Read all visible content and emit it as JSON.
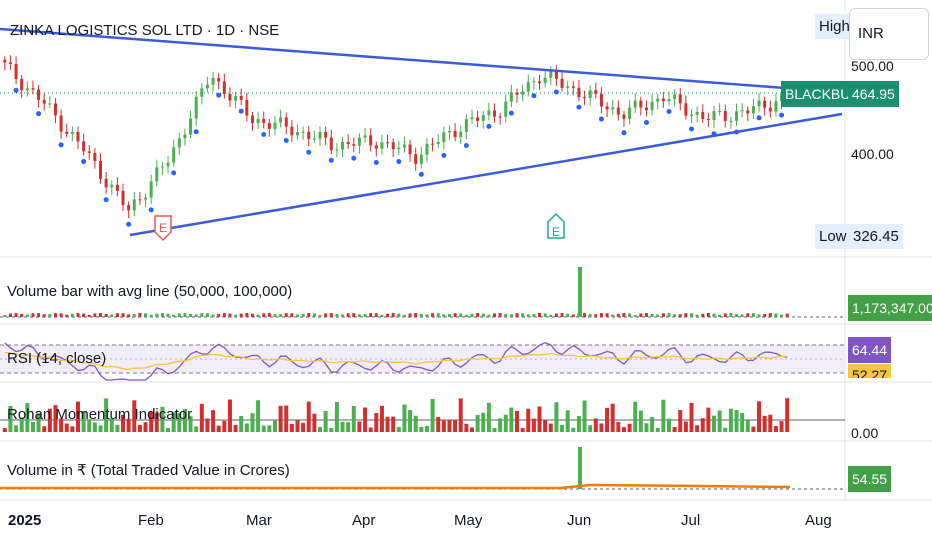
{
  "header": {
    "title": "ZINKA LOGISTICS SOL LTD · 1D · NSE",
    "high_label": "High",
    "currency": "INR"
  },
  "price_axis": {
    "ticks": [
      "500.00",
      "400.00"
    ],
    "low_label": "Low",
    "low_value": "326.45",
    "symbol_tag": "BLACKBUCK",
    "last_price": "464.95"
  },
  "markers": {
    "earnings": "E"
  },
  "panes": {
    "volume": {
      "title": "Volume bar with avg line (50,000, 100,000)",
      "value": "1,173,347.00"
    },
    "rsi": {
      "title": "RSI (14, close)",
      "value": "64.44",
      "ma_value": "52.27"
    },
    "momentum": {
      "title": "Rohan Momentum Indicator",
      "value": "0.00"
    },
    "turnover": {
      "title": "Volume in ₹ (Total Traded Value in Crores)",
      "value": "54.55"
    }
  },
  "time_axis": {
    "labels": [
      "2025",
      "Feb",
      "Mar",
      "Apr",
      "May",
      "Jun",
      "Jul",
      "Aug"
    ]
  },
  "colors": {
    "up": "#4caf50",
    "down": "#d32f2f",
    "trendline": "#3b5bdb",
    "dots": "#2962ff",
    "price_tag": "#1b8f6e",
    "volume_tag": "#43a047",
    "rsi_line": "#7e57c2",
    "rsi_ma": "#f5c542",
    "turnover_line": "#f57c00",
    "earnings_red": "#ef5350",
    "earnings_green": "#26a69a"
  },
  "chart_data": {
    "type": "candlestick",
    "y_axis": {
      "min": 326.45,
      "max": 525,
      "ticks": [
        400,
        500
      ]
    },
    "x": [
      "2025",
      "Feb",
      "Mar",
      "Apr",
      "May",
      "Jun",
      "Jul",
      "Aug"
    ],
    "last_price": 464.95,
    "close_series": [
      {
        "x": "2025",
        "y": 500
      },
      {
        "x": "Jan-13",
        "y": 455
      },
      {
        "x": "Jan-22",
        "y": 400
      },
      {
        "x": "Jan-28",
        "y": 335
      },
      {
        "x": "Feb",
        "y": 395
      },
      {
        "x": "Feb-06",
        "y": 490
      },
      {
        "x": "Feb-12",
        "y": 440
      },
      {
        "x": "Mar",
        "y": 428
      },
      {
        "x": "Mar-20",
        "y": 410
      },
      {
        "x": "Apr",
        "y": 415
      },
      {
        "x": "Apr-10",
        "y": 398
      },
      {
        "x": "Apr-25",
        "y": 430
      },
      {
        "x": "May",
        "y": 450
      },
      {
        "x": "May-15",
        "y": 490
      },
      {
        "x": "May-22",
        "y": 470
      },
      {
        "x": "Jun",
        "y": 445
      },
      {
        "x": "Jun-15",
        "y": 465
      },
      {
        "x": "Jul",
        "y": 440
      },
      {
        "x": "Jul-15",
        "y": 448
      },
      {
        "x": "Jul-24",
        "y": 464.95
      }
    ],
    "rsi": {
      "last": 64.44,
      "ma": 52.27
    },
    "volume_last": 1173347,
    "turnover_last_cr": 54.55,
    "momentum_last": 0.0
  }
}
